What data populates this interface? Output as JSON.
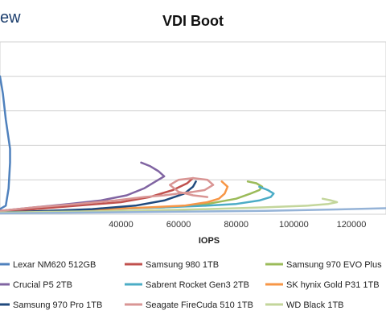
{
  "brand": {
    "text": "ew"
  },
  "chart_data": {
    "type": "line",
    "title": "VDI Boot",
    "xlabel": "IOPS",
    "ylabel": "",
    "xlim": [
      -2000,
      132000
    ],
    "ylim": [
      0,
      100
    ],
    "xticks": [
      40000,
      60000,
      80000,
      100000,
      120000
    ],
    "grid": true,
    "legend_position": "bottom",
    "series": [
      {
        "name": "Lexar NM620 512GB",
        "color": "#4f81bd",
        "x": [
          -2000,
          0,
          1000,
          1500,
          1500,
          0,
          -1000,
          -2000
        ],
        "y": [
          3,
          5,
          15,
          30,
          38,
          55,
          70,
          80
        ]
      },
      {
        "name": "Samsung 980 1TB",
        "color": "#c0504d",
        "x": [
          -2000,
          10000,
          25000,
          40000,
          50000,
          58000,
          63000,
          65000
        ],
        "y": [
          1,
          3,
          5,
          7,
          10,
          14,
          18,
          21
        ]
      },
      {
        "name": "Samsung 970 EVO Plus",
        "color": "#9bbb59",
        "x": [
          -2000,
          15000,
          35000,
          55000,
          70000,
          80000,
          85000,
          88000,
          89000,
          87000,
          84000
        ],
        "y": [
          1,
          2,
          3,
          4,
          6,
          9,
          12,
          14,
          16,
          18,
          19
        ]
      },
      {
        "name": "Crucial P5 2TB",
        "color": "#8064a2",
        "x": [
          -2000,
          10000,
          22000,
          33000,
          42000,
          48000,
          52000,
          55000,
          53000,
          50000,
          47000
        ],
        "y": [
          2,
          4,
          6,
          8,
          11,
          15,
          19,
          22,
          25,
          28,
          30
        ]
      },
      {
        "name": "Sabrent Rocket Gen3 2TB",
        "color": "#4bacc6",
        "x": [
          -2000,
          15000,
          35000,
          55000,
          70000,
          80000,
          88000,
          92000,
          93000,
          91000,
          88000
        ],
        "y": [
          1,
          2,
          3,
          4,
          5,
          6,
          8,
          10,
          12,
          14,
          16
        ]
      },
      {
        "name": "SK hynix Gold P31 1TB",
        "color": "#f79646",
        "x": [
          -2000,
          15000,
          35000,
          50000,
          62000,
          70000,
          74000,
          76000,
          77000,
          75000
        ],
        "y": [
          1,
          2,
          3,
          4,
          5,
          7,
          9,
          12,
          16,
          19
        ]
      },
      {
        "name": "Samsung 970 Pro 1TB",
        "color": "#1f497d",
        "x": [
          -2000,
          15000,
          30000,
          45000,
          55000,
          62000,
          65000,
          66000
        ],
        "y": [
          1,
          2,
          3,
          5,
          8,
          12,
          16,
          19
        ]
      },
      {
        "name": "Seagate FireCuda 510 1TB",
        "color": "#d99594",
        "x": [
          -2000,
          10000,
          25000,
          38000,
          48000,
          55000,
          60000,
          65000,
          69000,
          72000,
          70000,
          65000,
          60000,
          57000,
          60000,
          65000,
          70000
        ],
        "y": [
          2,
          4,
          6,
          8,
          10,
          11,
          12,
          13,
          14,
          17,
          20,
          21,
          20,
          17,
          13,
          11,
          10
        ]
      },
      {
        "name": "WD Black 1TB",
        "color": "#c3d69b",
        "x": [
          -2000,
          20000,
          45000,
          70000,
          90000,
          105000,
          112000,
          115000,
          113000,
          110000
        ],
        "y": [
          1,
          1.5,
          2,
          3,
          4,
          5,
          6,
          7,
          8,
          9
        ]
      },
      {
        "name": "",
        "color": "#95b3d7",
        "x": [
          -2000,
          30000,
          60000,
          90000,
          115000,
          132000
        ],
        "y": [
          0.5,
          1,
          1.5,
          2,
          2.8,
          3.5
        ]
      }
    ]
  }
}
